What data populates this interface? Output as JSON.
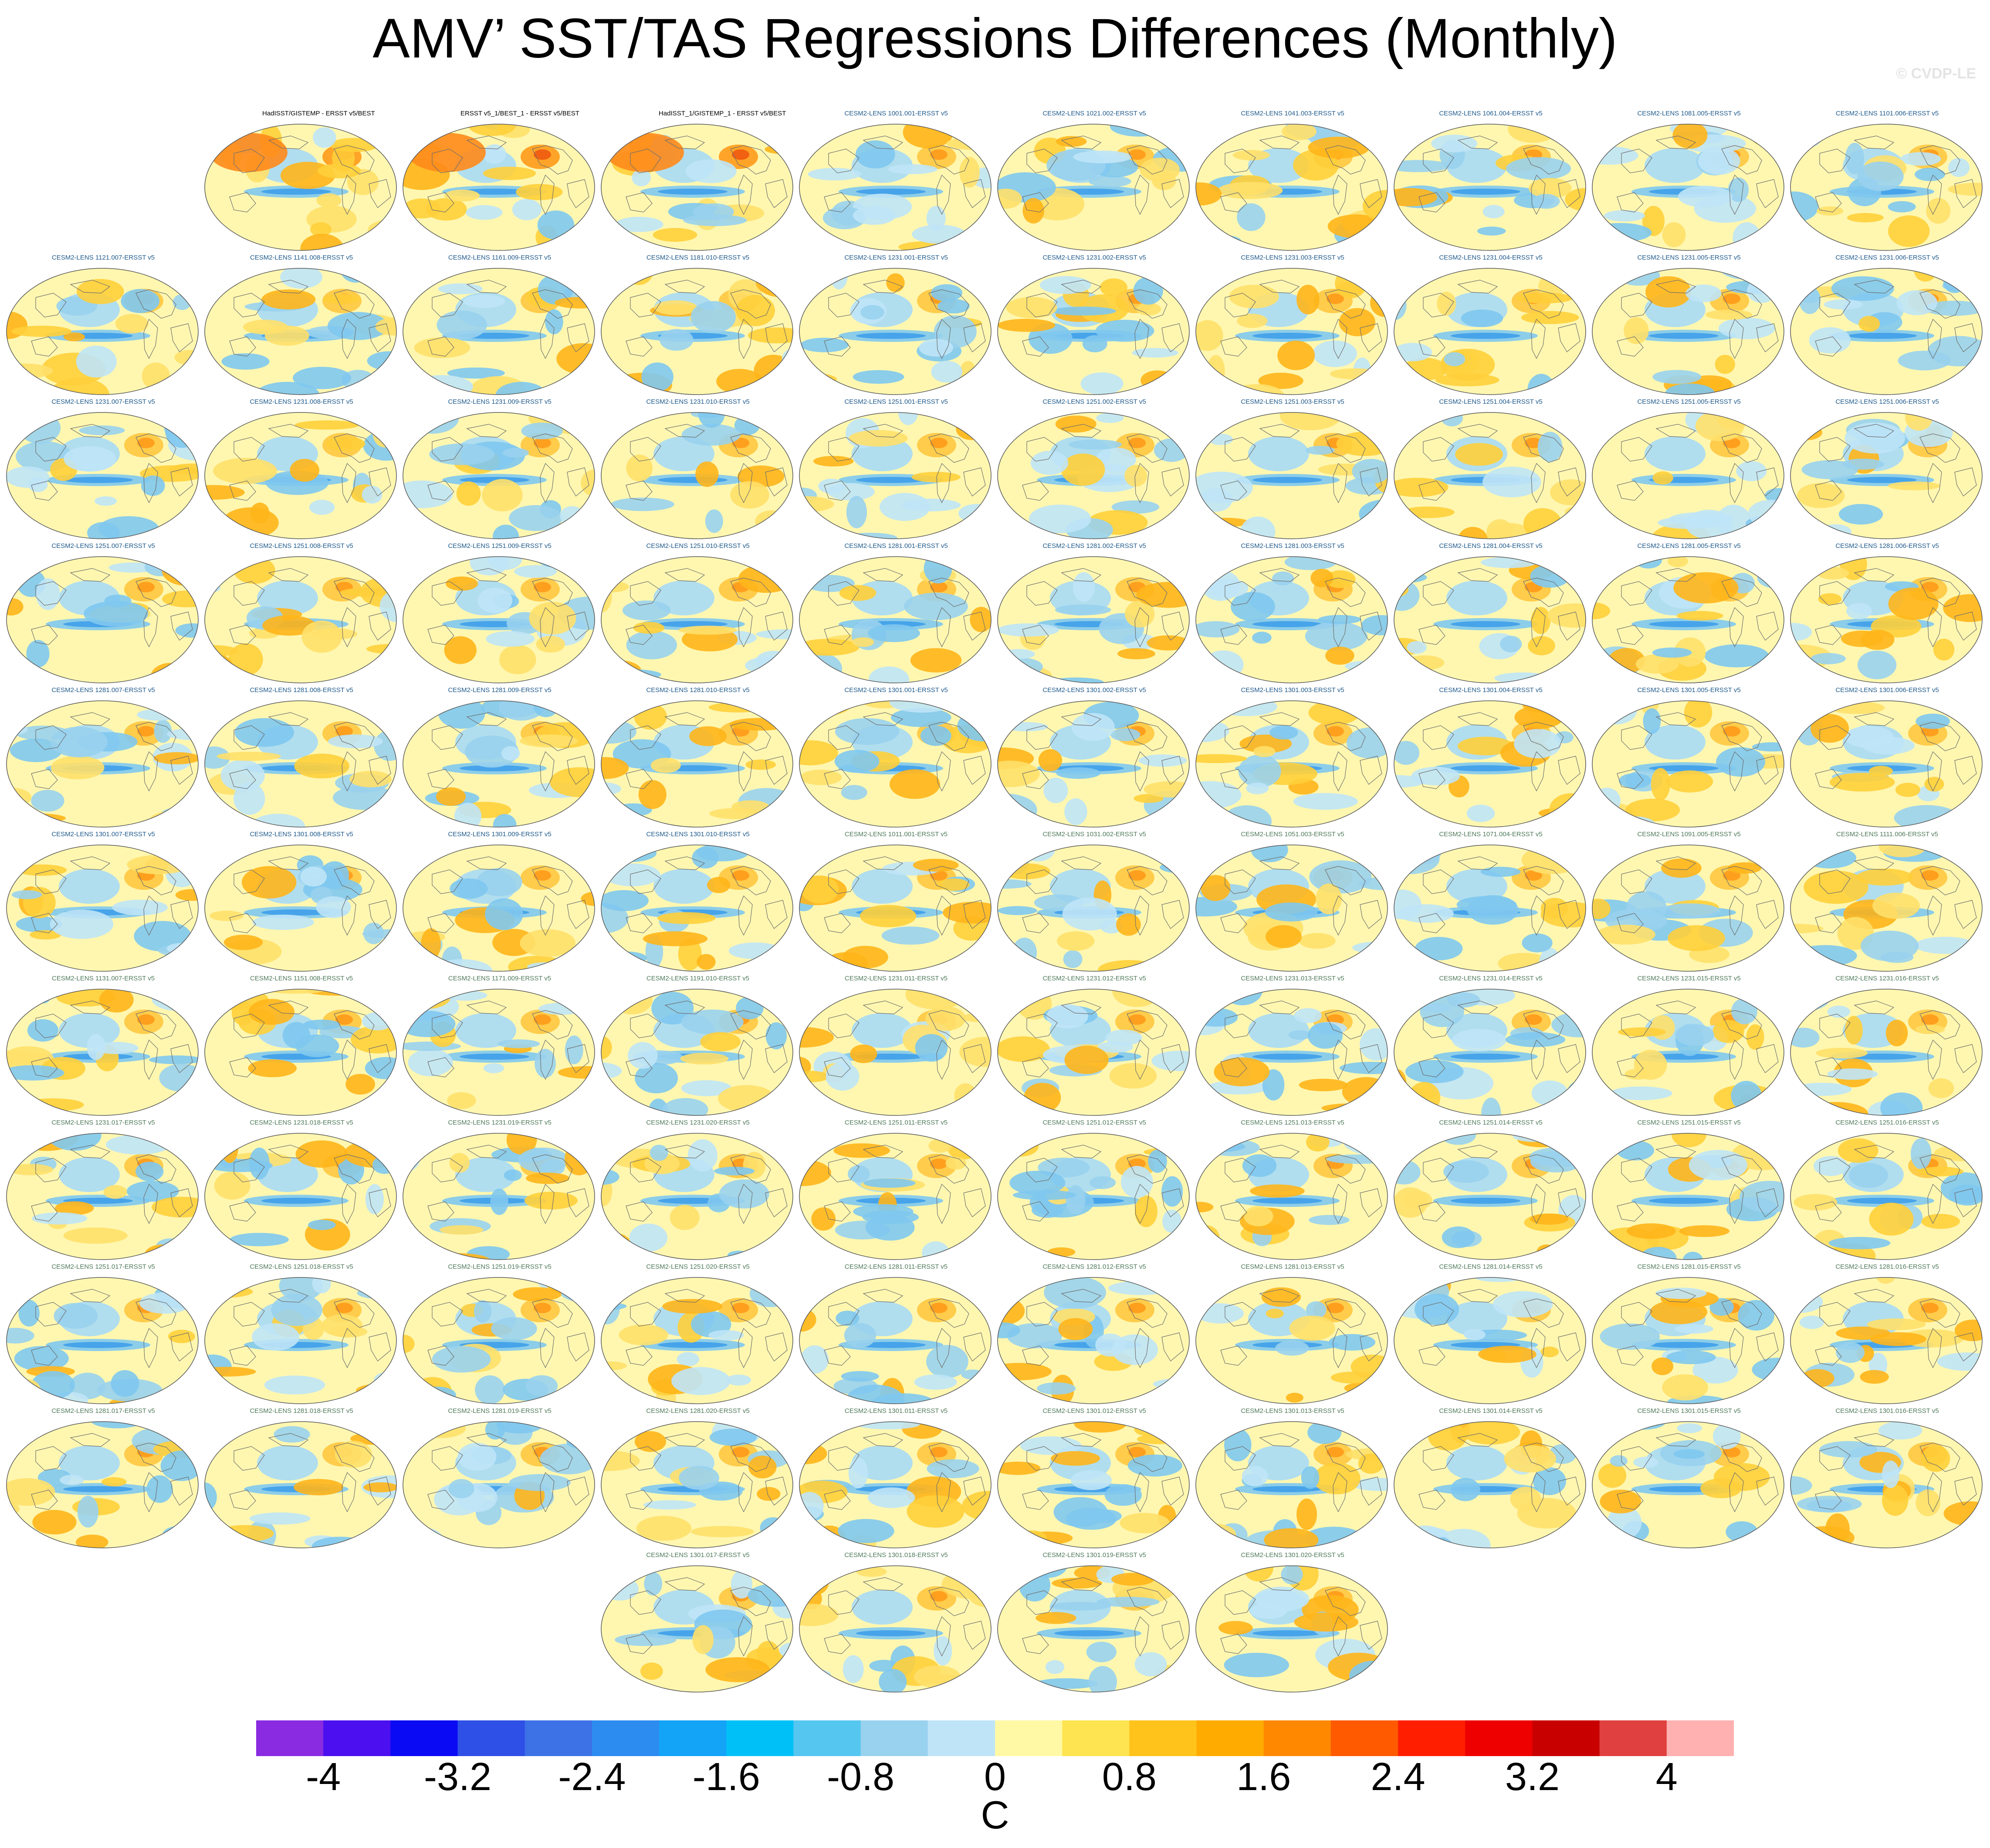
{
  "title": "AMV’ SST/TAS Regressions Differences (Monthly)",
  "watermark": "© CVDP-LE",
  "panels": [
    {
      "label": "HadISST/GISTEMP - ERSST v5/BEST",
      "kind": "obs",
      "row": 0,
      "col": 1
    },
    {
      "label": "ERSST v5_1/BEST_1 - ERSST v5/BEST",
      "kind": "obs",
      "row": 0,
      "col": 2
    },
    {
      "label": "HadISST_1/GISTEMP_1 - ERSST v5/BEST",
      "kind": "obs",
      "row": 0,
      "col": 3
    },
    {
      "label": "CESM2-LENS 1001.001-ERSST v5",
      "kind": "ens1",
      "row": 0,
      "col": 4
    },
    {
      "label": "CESM2-LENS 1021.002-ERSST v5",
      "kind": "ens1",
      "row": 0,
      "col": 5
    },
    {
      "label": "CESM2-LENS 1041.003-ERSST v5",
      "kind": "ens1",
      "row": 0,
      "col": 6
    },
    {
      "label": "CESM2-LENS 1061.004-ERSST v5",
      "kind": "ens1",
      "row": 0,
      "col": 7
    },
    {
      "label": "CESM2-LENS 1081.005-ERSST v5",
      "kind": "ens1",
      "row": 0,
      "col": 8
    },
    {
      "label": "CESM2-LENS 1101.006-ERSST v5",
      "kind": "ens1",
      "row": 0,
      "col": 9
    },
    {
      "label": "CESM2-LENS 1121.007-ERSST v5",
      "kind": "ens1",
      "row": 1,
      "col": 0
    },
    {
      "label": "CESM2-LENS 1141.008-ERSST v5",
      "kind": "ens1",
      "row": 1,
      "col": 1
    },
    {
      "label": "CESM2-LENS 1161.009-ERSST v5",
      "kind": "ens1",
      "row": 1,
      "col": 2
    },
    {
      "label": "CESM2-LENS 1181.010-ERSST v5",
      "kind": "ens1",
      "row": 1,
      "col": 3
    },
    {
      "label": "CESM2-LENS 1231.001-ERSST v5",
      "kind": "ens1",
      "row": 1,
      "col": 4
    },
    {
      "label": "CESM2-LENS 1231.002-ERSST v5",
      "kind": "ens1",
      "row": 1,
      "col": 5
    },
    {
      "label": "CESM2-LENS 1231.003-ERSST v5",
      "kind": "ens1",
      "row": 1,
      "col": 6
    },
    {
      "label": "CESM2-LENS 1231.004-ERSST v5",
      "kind": "ens1",
      "row": 1,
      "col": 7
    },
    {
      "label": "CESM2-LENS 1231.005-ERSST v5",
      "kind": "ens1",
      "row": 1,
      "col": 8
    },
    {
      "label": "CESM2-LENS 1231.006-ERSST v5",
      "kind": "ens1",
      "row": 1,
      "col": 9
    },
    {
      "label": "CESM2-LENS 1231.007-ERSST v5",
      "kind": "ens1",
      "row": 2,
      "col": 0
    },
    {
      "label": "CESM2-LENS 1231.008-ERSST v5",
      "kind": "ens1",
      "row": 2,
      "col": 1
    },
    {
      "label": "CESM2-LENS 1231.009-ERSST v5",
      "kind": "ens1",
      "row": 2,
      "col": 2
    },
    {
      "label": "CESM2-LENS 1231.010-ERSST v5",
      "kind": "ens1",
      "row": 2,
      "col": 3
    },
    {
      "label": "CESM2-LENS 1251.001-ERSST v5",
      "kind": "ens1",
      "row": 2,
      "col": 4
    },
    {
      "label": "CESM2-LENS 1251.002-ERSST v5",
      "kind": "ens1",
      "row": 2,
      "col": 5
    },
    {
      "label": "CESM2-LENS 1251.003-ERSST v5",
      "kind": "ens1",
      "row": 2,
      "col": 6
    },
    {
      "label": "CESM2-LENS 1251.004-ERSST v5",
      "kind": "ens1",
      "row": 2,
      "col": 7
    },
    {
      "label": "CESM2-LENS 1251.005-ERSST v5",
      "kind": "ens1",
      "row": 2,
      "col": 8
    },
    {
      "label": "CESM2-LENS 1251.006-ERSST v5",
      "kind": "ens1",
      "row": 2,
      "col": 9
    },
    {
      "label": "CESM2-LENS 1251.007-ERSST v5",
      "kind": "ens1",
      "row": 3,
      "col": 0
    },
    {
      "label": "CESM2-LENS 1251.008-ERSST v5",
      "kind": "ens1",
      "row": 3,
      "col": 1
    },
    {
      "label": "CESM2-LENS 1251.009-ERSST v5",
      "kind": "ens1",
      "row": 3,
      "col": 2
    },
    {
      "label": "CESM2-LENS 1251.010-ERSST v5",
      "kind": "ens1",
      "row": 3,
      "col": 3
    },
    {
      "label": "CESM2-LENS 1281.001-ERSST v5",
      "kind": "ens1",
      "row": 3,
      "col": 4
    },
    {
      "label": "CESM2-LENS 1281.002-ERSST v5",
      "kind": "ens1",
      "row": 3,
      "col": 5
    },
    {
      "label": "CESM2-LENS 1281.003-ERSST v5",
      "kind": "ens1",
      "row": 3,
      "col": 6
    },
    {
      "label": "CESM2-LENS 1281.004-ERSST v5",
      "kind": "ens1",
      "row": 3,
      "col": 7
    },
    {
      "label": "CESM2-LENS 1281.005-ERSST v5",
      "kind": "ens1",
      "row": 3,
      "col": 8
    },
    {
      "label": "CESM2-LENS 1281.006-ERSST v5",
      "kind": "ens1",
      "row": 3,
      "col": 9
    },
    {
      "label": "CESM2-LENS 1281.007-ERSST v5",
      "kind": "ens1",
      "row": 4,
      "col": 0
    },
    {
      "label": "CESM2-LENS 1281.008-ERSST v5",
      "kind": "ens1",
      "row": 4,
      "col": 1
    },
    {
      "label": "CESM2-LENS 1281.009-ERSST v5",
      "kind": "ens1",
      "row": 4,
      "col": 2
    },
    {
      "label": "CESM2-LENS 1281.010-ERSST v5",
      "kind": "ens1",
      "row": 4,
      "col": 3
    },
    {
      "label": "CESM2-LENS 1301.001-ERSST v5",
      "kind": "ens1",
      "row": 4,
      "col": 4
    },
    {
      "label": "CESM2-LENS 1301.002-ERSST v5",
      "kind": "ens1",
      "row": 4,
      "col": 5
    },
    {
      "label": "CESM2-LENS 1301.003-ERSST v5",
      "kind": "ens1",
      "row": 4,
      "col": 6
    },
    {
      "label": "CESM2-LENS 1301.004-ERSST v5",
      "kind": "ens1",
      "row": 4,
      "col": 7
    },
    {
      "label": "CESM2-LENS 1301.005-ERSST v5",
      "kind": "ens1",
      "row": 4,
      "col": 8
    },
    {
      "label": "CESM2-LENS 1301.006-ERSST v5",
      "kind": "ens1",
      "row": 4,
      "col": 9
    },
    {
      "label": "CESM2-LENS 1301.007-ERSST v5",
      "kind": "ens1",
      "row": 5,
      "col": 0
    },
    {
      "label": "CESM2-LENS 1301.008-ERSST v5",
      "kind": "ens1",
      "row": 5,
      "col": 1
    },
    {
      "label": "CESM2-LENS 1301.009-ERSST v5",
      "kind": "ens1",
      "row": 5,
      "col": 2
    },
    {
      "label": "CESM2-LENS 1301.010-ERSST v5",
      "kind": "ens1",
      "row": 5,
      "col": 3
    },
    {
      "label": "CESM2-LENS 1011.001-ERSST v5",
      "kind": "ens2",
      "row": 5,
      "col": 4
    },
    {
      "label": "CESM2-LENS 1031.002-ERSST v5",
      "kind": "ens2",
      "row": 5,
      "col": 5
    },
    {
      "label": "CESM2-LENS 1051.003-ERSST v5",
      "kind": "ens2",
      "row": 5,
      "col": 6
    },
    {
      "label": "CESM2-LENS 1071.004-ERSST v5",
      "kind": "ens2",
      "row": 5,
      "col": 7
    },
    {
      "label": "CESM2-LENS 1091.005-ERSST v5",
      "kind": "ens2",
      "row": 5,
      "col": 8
    },
    {
      "label": "CESM2-LENS 1111.006-ERSST v5",
      "kind": "ens2",
      "row": 5,
      "col": 9
    },
    {
      "label": "CESM2-LENS 1131.007-ERSST v5",
      "kind": "ens2",
      "row": 6,
      "col": 0
    },
    {
      "label": "CESM2-LENS 1151.008-ERSST v5",
      "kind": "ens2",
      "row": 6,
      "col": 1
    },
    {
      "label": "CESM2-LENS 1171.009-ERSST v5",
      "kind": "ens2",
      "row": 6,
      "col": 2
    },
    {
      "label": "CESM2-LENS 1191.010-ERSST v5",
      "kind": "ens2",
      "row": 6,
      "col": 3
    },
    {
      "label": "CESM2-LENS 1231.011-ERSST v5",
      "kind": "ens2",
      "row": 6,
      "col": 4
    },
    {
      "label": "CESM2-LENS 1231.012-ERSST v5",
      "kind": "ens2",
      "row": 6,
      "col": 5
    },
    {
      "label": "CESM2-LENS 1231.013-ERSST v5",
      "kind": "ens2",
      "row": 6,
      "col": 6
    },
    {
      "label": "CESM2-LENS 1231.014-ERSST v5",
      "kind": "ens2",
      "row": 6,
      "col": 7
    },
    {
      "label": "CESM2-LENS 1231.015-ERSST v5",
      "kind": "ens2",
      "row": 6,
      "col": 8
    },
    {
      "label": "CESM2-LENS 1231.016-ERSST v5",
      "kind": "ens2",
      "row": 6,
      "col": 9
    },
    {
      "label": "CESM2-LENS 1231.017-ERSST v5",
      "kind": "ens2",
      "row": 7,
      "col": 0
    },
    {
      "label": "CESM2-LENS 1231.018-ERSST v5",
      "kind": "ens2",
      "row": 7,
      "col": 1
    },
    {
      "label": "CESM2-LENS 1231.019-ERSST v5",
      "kind": "ens2",
      "row": 7,
      "col": 2
    },
    {
      "label": "CESM2-LENS 1231.020-ERSST v5",
      "kind": "ens2",
      "row": 7,
      "col": 3
    },
    {
      "label": "CESM2-LENS 1251.011-ERSST v5",
      "kind": "ens2",
      "row": 7,
      "col": 4
    },
    {
      "label": "CESM2-LENS 1251.012-ERSST v5",
      "kind": "ens2",
      "row": 7,
      "col": 5
    },
    {
      "label": "CESM2-LENS 1251.013-ERSST v5",
      "kind": "ens2",
      "row": 7,
      "col": 6
    },
    {
      "label": "CESM2-LENS 1251.014-ERSST v5",
      "kind": "ens2",
      "row": 7,
      "col": 7
    },
    {
      "label": "CESM2-LENS 1251.015-ERSST v5",
      "kind": "ens2",
      "row": 7,
      "col": 8
    },
    {
      "label": "CESM2-LENS 1251.016-ERSST v5",
      "kind": "ens2",
      "row": 7,
      "col": 9
    },
    {
      "label": "CESM2-LENS 1251.017-ERSST v5",
      "kind": "ens2",
      "row": 8,
      "col": 0
    },
    {
      "label": "CESM2-LENS 1251.018-ERSST v5",
      "kind": "ens2",
      "row": 8,
      "col": 1
    },
    {
      "label": "CESM2-LENS 1251.019-ERSST v5",
      "kind": "ens2",
      "row": 8,
      "col": 2
    },
    {
      "label": "CESM2-LENS 1251.020-ERSST v5",
      "kind": "ens2",
      "row": 8,
      "col": 3
    },
    {
      "label": "CESM2-LENS 1281.011-ERSST v5",
      "kind": "ens2",
      "row": 8,
      "col": 4
    },
    {
      "label": "CESM2-LENS 1281.012-ERSST v5",
      "kind": "ens2",
      "row": 8,
      "col": 5
    },
    {
      "label": "CESM2-LENS 1281.013-ERSST v5",
      "kind": "ens2",
      "row": 8,
      "col": 6
    },
    {
      "label": "CESM2-LENS 1281.014-ERSST v5",
      "kind": "ens2",
      "row": 8,
      "col": 7
    },
    {
      "label": "CESM2-LENS 1281.015-ERSST v5",
      "kind": "ens2",
      "row": 8,
      "col": 8
    },
    {
      "label": "CESM2-LENS 1281.016-ERSST v5",
      "kind": "ens2",
      "row": 8,
      "col": 9
    },
    {
      "label": "CESM2-LENS 1281.017-ERSST v5",
      "kind": "ens2",
      "row": 9,
      "col": 0
    },
    {
      "label": "CESM2-LENS 1281.018-ERSST v5",
      "kind": "ens2",
      "row": 9,
      "col": 1
    },
    {
      "label": "CESM2-LENS 1281.019-ERSST v5",
      "kind": "ens2",
      "row": 9,
      "col": 2
    },
    {
      "label": "CESM2-LENS 1281.020-ERSST v5",
      "kind": "ens2",
      "row": 9,
      "col": 3
    },
    {
      "label": "CESM2-LENS 1301.011-ERSST v5",
      "kind": "ens2",
      "row": 9,
      "col": 4
    },
    {
      "label": "CESM2-LENS 1301.012-ERSST v5",
      "kind": "ens2",
      "row": 9,
      "col": 5
    },
    {
      "label": "CESM2-LENS 1301.013-ERSST v5",
      "kind": "ens2",
      "row": 9,
      "col": 6
    },
    {
      "label": "CESM2-LENS 1301.014-ERSST v5",
      "kind": "ens2",
      "row": 9,
      "col": 7
    },
    {
      "label": "CESM2-LENS 1301.015-ERSST v5",
      "kind": "ens2",
      "row": 9,
      "col": 8
    },
    {
      "label": "CESM2-LENS 1301.016-ERSST v5",
      "kind": "ens2",
      "row": 9,
      "col": 9
    },
    {
      "label": "CESM2-LENS 1301.017-ERSST v5",
      "kind": "ens2",
      "row": 10,
      "col": 3
    },
    {
      "label": "CESM2-LENS 1301.018-ERSST v5",
      "kind": "ens2",
      "row": 10,
      "col": 4
    },
    {
      "label": "CESM2-LENS 1301.019-ERSST v5",
      "kind": "ens2",
      "row": 10,
      "col": 5
    },
    {
      "label": "CESM2-LENS 1301.020-ERSST v5",
      "kind": "ens2",
      "row": 10,
      "col": 6
    }
  ],
  "colorbar": {
    "units": "C",
    "colors": [
      "#8a2be2",
      "#4b0ff0",
      "#0a0af5",
      "#2e50e6",
      "#3d71e6",
      "#2d8cf0",
      "#13a3f7",
      "#00c1f7",
      "#55c6f0",
      "#99d2ee",
      "#bfe4f7",
      "#fff9a6",
      "#ffe451",
      "#ffc31c",
      "#ffab00",
      "#ff8800",
      "#ff5a00",
      "#ff1e00",
      "#ee0000",
      "#c80000",
      "#e04040",
      "#ffb0b0"
    ],
    "tick_labels": [
      "-4",
      "-3.2",
      "-2.4",
      "-1.6",
      "-0.8",
      "0",
      "0.8",
      "1.6",
      "2.4",
      "3.2",
      "4"
    ]
  }
}
